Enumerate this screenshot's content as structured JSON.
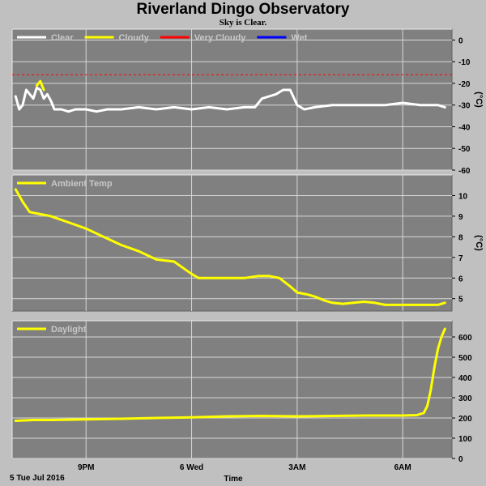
{
  "title": "Riverland Dingo Observatory",
  "subtitle": "Sky is Clear.",
  "xlabel": "Time",
  "date_label": "5 Tue Jul 2016",
  "colors": {
    "background": "#c0c0c0",
    "plot_bg": "#808080",
    "grid": "#d8d8d8",
    "white": "#ffffff",
    "yellow": "#ffff00",
    "red": "#ff0000",
    "blue": "#0000ff"
  },
  "chart_data": [
    {
      "type": "line",
      "ylabel": "(°C)",
      "ylim": [
        -60,
        5
      ],
      "yticks": [
        0,
        -10,
        -20,
        -30,
        -40,
        -50,
        -60
      ],
      "xlim": [
        18.9,
        31.4
      ],
      "xticks": [
        {
          "x": 21,
          "label": "9PM"
        },
        {
          "x": 24,
          "label": "6 Wed"
        },
        {
          "x": 27,
          "label": "3AM"
        },
        {
          "x": 30,
          "label": "6AM"
        }
      ],
      "legend": [
        {
          "name": "Clear",
          "color": "#ffffff"
        },
        {
          "name": "Cloudy",
          "color": "#ffff00"
        },
        {
          "name": "Very Cloudy",
          "color": "#ff0000"
        },
        {
          "name": "Wet",
          "color": "#0000ff"
        }
      ],
      "thresholds": [
        {
          "y": -16,
          "color": "#ff0000",
          "style": "dashed"
        }
      ],
      "series": [
        {
          "color": "#ffffff",
          "points": [
            [
              19.0,
              -26
            ],
            [
              19.1,
              -32
            ],
            [
              19.2,
              -30
            ],
            [
              19.3,
              -23
            ],
            [
              19.4,
              -25
            ],
            [
              19.5,
              -27
            ],
            [
              19.6,
              -22
            ],
            [
              19.7,
              -23
            ],
            [
              19.8,
              -27
            ],
            [
              19.9,
              -25
            ],
            [
              20.0,
              -28
            ],
            [
              20.1,
              -32
            ],
            [
              20.3,
              -32
            ],
            [
              20.5,
              -33
            ],
            [
              20.7,
              -32
            ],
            [
              21.0,
              -32
            ],
            [
              21.3,
              -33
            ],
            [
              21.6,
              -32
            ],
            [
              22.0,
              -32
            ],
            [
              22.5,
              -31
            ],
            [
              23.0,
              -32
            ],
            [
              23.5,
              -31
            ],
            [
              24.0,
              -32
            ],
            [
              24.5,
              -31
            ],
            [
              25.0,
              -32
            ],
            [
              25.5,
              -31
            ],
            [
              25.8,
              -31
            ],
            [
              26.0,
              -27
            ],
            [
              26.2,
              -26
            ],
            [
              26.4,
              -25
            ],
            [
              26.6,
              -23
            ],
            [
              26.8,
              -23
            ],
            [
              27.0,
              -30
            ],
            [
              27.2,
              -32
            ],
            [
              27.5,
              -31
            ],
            [
              28.0,
              -30
            ],
            [
              28.5,
              -30
            ],
            [
              29.0,
              -30
            ],
            [
              29.5,
              -30
            ],
            [
              30.0,
              -29
            ],
            [
              30.5,
              -30
            ],
            [
              31.0,
              -30
            ],
            [
              31.2,
              -31
            ]
          ]
        },
        {
          "color": "#ffff00",
          "points": [
            [
              19.6,
              -21
            ],
            [
              19.7,
              -19
            ],
            [
              19.8,
              -23
            ]
          ]
        }
      ]
    },
    {
      "type": "line",
      "ylabel": "(°C)",
      "ylim": [
        4.4,
        11
      ],
      "yticks": [
        10,
        9,
        8,
        7,
        6,
        5
      ],
      "xlim": [
        18.9,
        31.4
      ],
      "xticks": [
        {
          "x": 21,
          "label": "9PM"
        },
        {
          "x": 24,
          "label": "6 Wed"
        },
        {
          "x": 27,
          "label": "3AM"
        },
        {
          "x": 30,
          "label": "6AM"
        }
      ],
      "legend": [
        {
          "name": "Ambient Temp",
          "color": "#ffff00"
        }
      ],
      "series": [
        {
          "name": "Ambient Temp",
          "color": "#ffff00",
          "points": [
            [
              19.0,
              10.3
            ],
            [
              19.2,
              9.7
            ],
            [
              19.4,
              9.2
            ],
            [
              19.7,
              9.1
            ],
            [
              20.0,
              9.0
            ],
            [
              20.5,
              8.7
            ],
            [
              21.0,
              8.4
            ],
            [
              21.5,
              8.0
            ],
            [
              22.0,
              7.6
            ],
            [
              22.5,
              7.3
            ],
            [
              23.0,
              6.9
            ],
            [
              23.5,
              6.8
            ],
            [
              24.0,
              6.2
            ],
            [
              24.2,
              6.0
            ],
            [
              24.5,
              6.0
            ],
            [
              25.0,
              6.0
            ],
            [
              25.5,
              6.0
            ],
            [
              25.9,
              6.1
            ],
            [
              26.2,
              6.1
            ],
            [
              26.5,
              6.0
            ],
            [
              26.8,
              5.6
            ],
            [
              27.0,
              5.3
            ],
            [
              27.3,
              5.2
            ],
            [
              27.5,
              5.1
            ],
            [
              27.8,
              4.9
            ],
            [
              28.0,
              4.8
            ],
            [
              28.3,
              4.75
            ],
            [
              28.6,
              4.8
            ],
            [
              28.9,
              4.85
            ],
            [
              29.2,
              4.8
            ],
            [
              29.5,
              4.7
            ],
            [
              30.0,
              4.7
            ],
            [
              30.5,
              4.7
            ],
            [
              31.0,
              4.7
            ],
            [
              31.2,
              4.8
            ]
          ]
        }
      ]
    },
    {
      "type": "line",
      "ylim": [
        0,
        680
      ],
      "yticks": [
        600,
        500,
        400,
        300,
        200,
        100,
        0
      ],
      "xlim": [
        18.9,
        31.4
      ],
      "xticks": [
        {
          "x": 21,
          "label": "9PM"
        },
        {
          "x": 24,
          "label": "6 Wed"
        },
        {
          "x": 27,
          "label": "3AM"
        },
        {
          "x": 30,
          "label": "6AM"
        }
      ],
      "legend": [
        {
          "name": "Daylight",
          "color": "#ffff00"
        }
      ],
      "series": [
        {
          "name": "Daylight",
          "color": "#ffff00",
          "points": [
            [
              19.0,
              186
            ],
            [
              19.5,
              190
            ],
            [
              20.0,
              190
            ],
            [
              21.0,
              193
            ],
            [
              22.0,
              196
            ],
            [
              23.0,
              200
            ],
            [
              24.0,
              203
            ],
            [
              25.0,
              208
            ],
            [
              26.0,
              210
            ],
            [
              27.0,
              208
            ],
            [
              28.0,
              210
            ],
            [
              29.0,
              212
            ],
            [
              30.0,
              212
            ],
            [
              30.4,
              214
            ],
            [
              30.6,
              225
            ],
            [
              30.7,
              260
            ],
            [
              30.8,
              340
            ],
            [
              30.9,
              450
            ],
            [
              31.0,
              540
            ],
            [
              31.1,
              600
            ],
            [
              31.2,
              640
            ]
          ]
        }
      ]
    }
  ]
}
